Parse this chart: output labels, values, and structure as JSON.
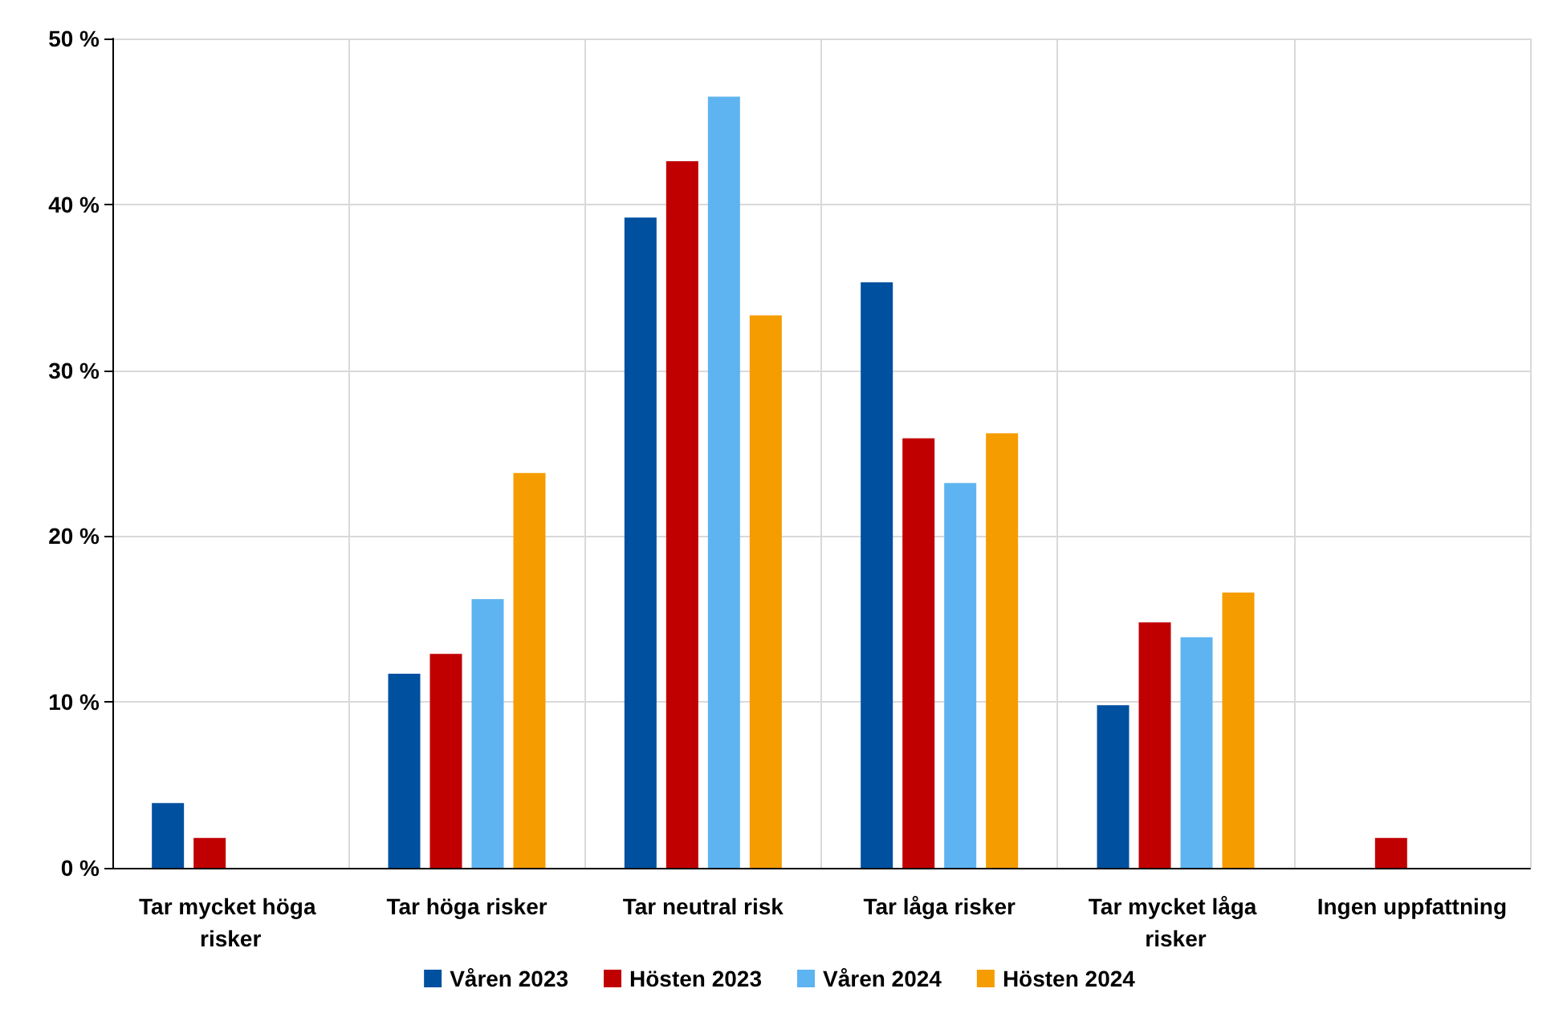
{
  "chart_data": {
    "type": "bar",
    "categories": [
      "Tar mycket höga risker",
      "Tar höga risker",
      "Tar neutral risk",
      "Tar låga risker",
      "Tar mycket låga risker",
      "Ingen uppfattning"
    ],
    "series": [
      {
        "name": "Våren 2023",
        "color": "#0050a0",
        "values": [
          3.9,
          11.7,
          39.2,
          35.3,
          9.8,
          null
        ]
      },
      {
        "name": "Hösten 2023",
        "color": "#c00000",
        "values": [
          1.8,
          12.9,
          42.6,
          25.9,
          14.8,
          1.8
        ]
      },
      {
        "name": "Våren 2024",
        "color": "#5eb4f0",
        "values": [
          null,
          16.2,
          46.5,
          23.2,
          13.9,
          null
        ]
      },
      {
        "name": "Hösten 2024",
        "color": "#f59c00",
        "values": [
          null,
          23.8,
          33.3,
          26.2,
          16.6,
          null
        ]
      }
    ],
    "ylim": [
      0,
      50
    ],
    "yticks": [
      {
        "value": 0,
        "label": "0 %"
      },
      {
        "value": 10,
        "label": "10 %"
      },
      {
        "value": 20,
        "label": "20 %"
      },
      {
        "value": 30,
        "label": "30 %"
      },
      {
        "value": 40,
        "label": "40 %"
      },
      {
        "value": 50,
        "label": "50 %"
      }
    ],
    "grid": true,
    "legend": "bottom"
  }
}
